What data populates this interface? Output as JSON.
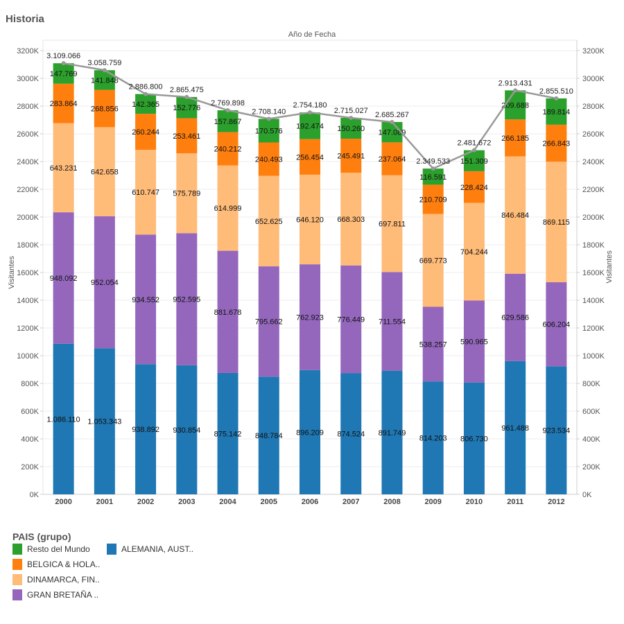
{
  "header": {
    "title": "Historia"
  },
  "chart_data": {
    "type": "bar",
    "stacked": true,
    "title": "",
    "xlabel": "Año de Fecha",
    "ylabel": "Visitantes",
    "ylabel_right": "Visitantes",
    "ylim": [
      0,
      3200000
    ],
    "yticks": [
      "0K",
      "200K",
      "400K",
      "600K",
      "800K",
      "1000K",
      "1200K",
      "1400K",
      "1600K",
      "1800K",
      "2000K",
      "2200K",
      "2400K",
      "2600K",
      "2800K",
      "3000K",
      "3200K"
    ],
    "grid": true,
    "categories": [
      "2000",
      "2001",
      "2002",
      "2003",
      "2004",
      "2005",
      "2006",
      "2007",
      "2008",
      "2009",
      "2010",
      "2011",
      "2012"
    ],
    "series": [
      {
        "name": "ALEMANIA, AUST..",
        "color": "#1f77b4",
        "values": [
          1086110,
          1053343,
          938892,
          930854,
          875142,
          848784,
          896209,
          874524,
          891749,
          814203,
          806730,
          961488,
          923534
        ]
      },
      {
        "name": "GRAN BRETAÑA ..",
        "color": "#9467bd",
        "values": [
          948092,
          952054,
          934552,
          952595,
          881678,
          795662,
          762923,
          776449,
          711554,
          538257,
          590965,
          629586,
          606204
        ]
      },
      {
        "name": "DINAMARCA, FIN..",
        "color": "#ffbb78",
        "values": [
          643231,
          642658,
          610747,
          575789,
          614999,
          652625,
          646120,
          668303,
          697811,
          669773,
          704244,
          846484,
          869115
        ]
      },
      {
        "name": "BELGICA & HOLA..",
        "color": "#ff7f0e",
        "values": [
          283864,
          268856,
          260244,
          253461,
          240212,
          240493,
          256454,
          245491,
          237064,
          210709,
          228424,
          266185,
          266843
        ]
      },
      {
        "name": "Resto del Mundo",
        "color": "#2ca02c",
        "values": [
          147769,
          141848,
          142365,
          152776,
          157867,
          170576,
          192474,
          150260,
          147089,
          116591,
          151309,
          209688,
          189814
        ]
      }
    ],
    "totals_line": {
      "color": "#999999",
      "values": [
        3109066,
        3058759,
        2886800,
        2865475,
        2769898,
        2708140,
        2754180,
        2715027,
        2685267,
        2349533,
        2481672,
        2913431,
        2855510
      ]
    },
    "legend": {
      "title": "PAIS (grupo)",
      "placement": "bottom-left"
    }
  }
}
